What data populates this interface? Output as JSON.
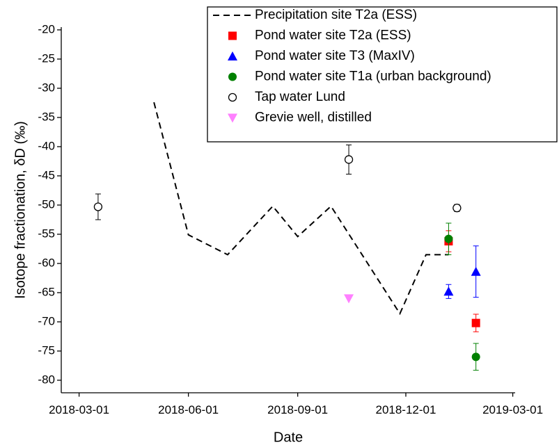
{
  "chart_data": {
    "type": "scatter",
    "xlabel": "Date",
    "ylabel": "Isotope fractionation, δD (‰)",
    "xlim": [
      "2018-02-14",
      "2019-03-03"
    ],
    "xticks": [
      "2018-03-01",
      "2018-06-01",
      "2018-09-01",
      "2018-12-01",
      "2019-03-01"
    ],
    "ylim": [
      -82.1,
      -19.6
    ],
    "yticks": [
      -20,
      -25,
      -30,
      -35,
      -40,
      -45,
      -50,
      -55,
      -60,
      -65,
      -70,
      -75,
      -80
    ],
    "legend": "upper right",
    "series": [
      {
        "name": "Precipitation site T2a (ESS)",
        "color": "#000000",
        "marker": "dashed-line",
        "x": [
          "2018-05-03",
          "2018-06-01",
          "2018-07-04",
          "2018-08-11",
          "2018-09-01",
          "2018-09-29",
          "2018-11-26",
          "2018-12-18",
          "2019-01-06"
        ],
        "values": [
          -32.4,
          -55.1,
          -58.5,
          -50.2,
          -55.4,
          -50.2,
          -68.6,
          -58.5,
          -58.5
        ]
      },
      {
        "name": "Pond water site T2a (ESS)",
        "color": "#ff0000",
        "marker": "square",
        "x": [
          "2019-01-06",
          "2019-01-29"
        ],
        "values": [
          -56.2,
          -70.2
        ],
        "errors": [
          1.8,
          1.5
        ]
      },
      {
        "name": "Pond water site T3 (MaxIV)",
        "color": "#0000ff",
        "marker": "triangle-up",
        "x": [
          "2019-01-06",
          "2019-01-29"
        ],
        "values": [
          -64.8,
          -61.4
        ],
        "errors": [
          1.2,
          4.4
        ]
      },
      {
        "name": "Pond water site T1a (urban background)",
        "color": "#008000",
        "marker": "circle",
        "x": [
          "2019-01-06",
          "2019-01-29"
        ],
        "values": [
          -55.8,
          -76.0
        ],
        "errors": [
          2.7,
          2.3
        ]
      },
      {
        "name": "Tap water Lund",
        "color": "#000000",
        "marker": "open-circle",
        "x": [
          "2018-03-17",
          "2018-10-14",
          "2019-01-13"
        ],
        "values": [
          -50.3,
          -42.2,
          -50.5
        ],
        "errors": [
          2.2,
          2.5,
          0.6
        ]
      },
      {
        "name": "Grevie well, distilled",
        "color": "#ff80ff",
        "marker": "triangle-down",
        "x": [
          "2018-10-14"
        ],
        "values": [
          -66.0
        ]
      }
    ]
  }
}
